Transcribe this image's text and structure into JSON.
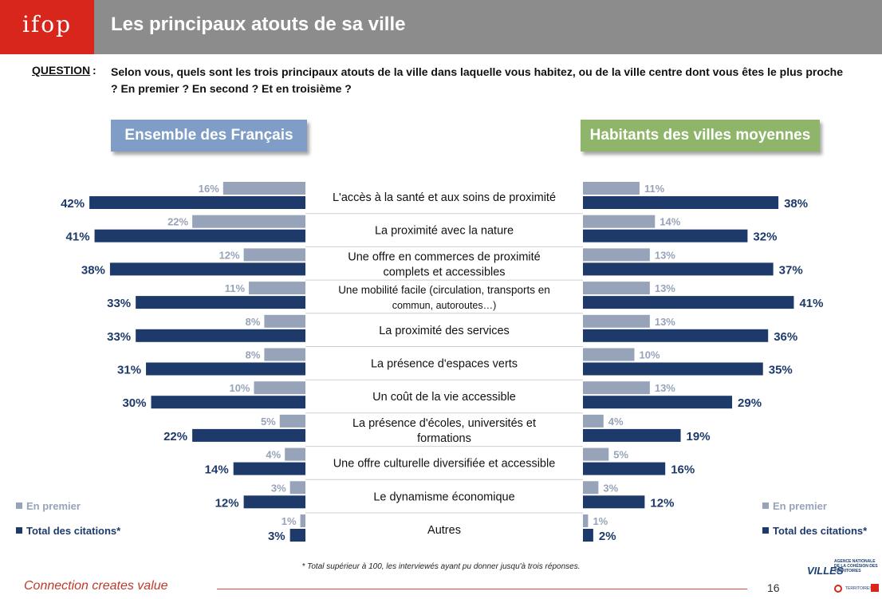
{
  "header": {
    "logo": "ifop",
    "title": "Les principaux atouts de sa ville"
  },
  "question": {
    "label": "QUESTION",
    "colon": ":",
    "text": "Selon vous, quels sont les trois principaux atouts de la ville dans laquelle vous habitez, ou de la ville centre dont vous êtes le plus proche ? En premier ? En second ? Et en troisième ?"
  },
  "panels": {
    "left_title": "Ensemble des Français",
    "right_title": "Habitants des villes moyennes"
  },
  "legend": {
    "first": "En premier",
    "total": "Total des citations*"
  },
  "colors": {
    "first": "#97a3b8",
    "total": "#1d3a6b",
    "left_pill": "#7f9dc6",
    "right_pill": "#8fb56a",
    "brand": "#d9261c"
  },
  "chart_data": {
    "type": "bar",
    "orientation": "horizontal-butterfly",
    "categories": [
      [
        "L'accès à la santé et aux soins de proximité"
      ],
      [
        "La proximité avec la nature"
      ],
      [
        "Une offre en commerces de proximité",
        "complets et accessibles"
      ],
      [
        "Une mobilité facile (circulation, transports en",
        "commun, autoroutes…)"
      ],
      [
        "La proximité des services"
      ],
      [
        "La présence d'espaces verts"
      ],
      [
        "Un coût de la vie accessible"
      ],
      [
        "La présence d'écoles, universités et",
        "formations"
      ],
      [
        "Une offre culturelle diversifiée et accessible"
      ],
      [
        "Le dynamisme économique"
      ],
      [
        "Autres"
      ]
    ],
    "groups": [
      {
        "name": "Ensemble des Français",
        "series": [
          {
            "name": "En premier",
            "values": [
              16,
              22,
              12,
              11,
              8,
              8,
              10,
              5,
              4,
              3,
              1
            ]
          },
          {
            "name": "Total des citations*",
            "values": [
              42,
              41,
              38,
              33,
              33,
              31,
              30,
              22,
              14,
              12,
              3
            ]
          }
        ]
      },
      {
        "name": "Habitants des villes moyennes",
        "series": [
          {
            "name": "En premier",
            "values": [
              11,
              14,
              13,
              13,
              13,
              10,
              13,
              4,
              5,
              3,
              1
            ]
          },
          {
            "name": "Total des citations*",
            "values": [
              38,
              32,
              37,
              41,
              36,
              35,
              29,
              19,
              16,
              12,
              2
            ]
          }
        ]
      }
    ],
    "value_suffix": "%",
    "legend_placement": "bottom-left and bottom-right",
    "grid": false
  },
  "footnote": "* Total supérieur à 100, les interviewés ayant pu donner jusqu'à trois réponses.",
  "footer": {
    "tagline": "Connection creates value",
    "page_number": "16",
    "logo_villes": "VILLES",
    "logo_anct": "AGENCE NATIONALE DE LA COHÉSION DES TERRITOIRES",
    "logo_terr": "TERRITOIRES"
  }
}
